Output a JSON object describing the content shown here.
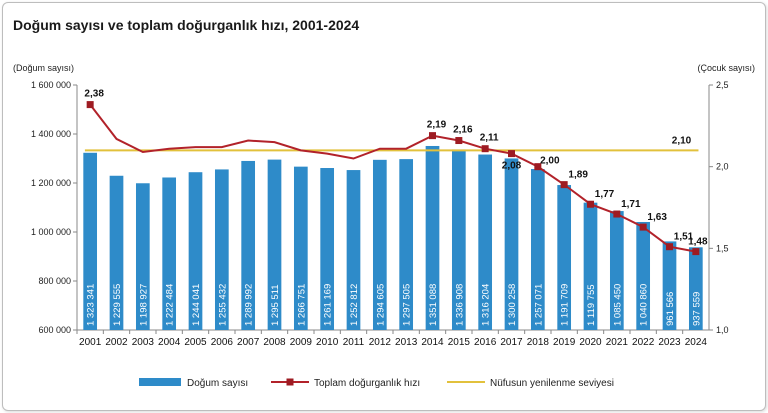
{
  "chart_data": {
    "type": "bar",
    "title": "Doğum sayısı ve toplam doğurganlık hızı, 2001-2024",
    "ylabel_left": "(Doğum sayısı)",
    "ylabel_right": "(Çocuk sayısı)",
    "ylim_left": [
      600000,
      1600000
    ],
    "ylim_right": [
      1.0,
      2.5
    ],
    "left_ticks": [
      "600 000",
      "800 000",
      "1 000 000",
      "1 200 000",
      "1 400 000",
      "1 600 000"
    ],
    "right_ticks": [
      "1,0",
      "1,5",
      "2,0",
      "2,5"
    ],
    "categories": [
      "2001",
      "2002",
      "2003",
      "2004",
      "2005",
      "2006",
      "2007",
      "2008",
      "2009",
      "2010",
      "2011",
      "2012",
      "2013",
      "2014",
      "2015",
      "2016",
      "2017",
      "2018",
      "2019",
      "2020",
      "2021",
      "2022",
      "2023",
      "2024"
    ],
    "series": [
      {
        "name": "Doğum sayısı",
        "type": "bar",
        "axis": "left",
        "values": [
          1323341,
          1229555,
          1198927,
          1222484,
          1244041,
          1255432,
          1289992,
          1295511,
          1266751,
          1261169,
          1252812,
          1294605,
          1297505,
          1351088,
          1336908,
          1316204,
          1300258,
          1257071,
          1191709,
          1119755,
          1085450,
          1040860,
          961566,
          937559
        ],
        "labels": [
          "1 323 341",
          "1 229 555",
          "1 198 927",
          "1 222 484",
          "1 244 041",
          "1 255 432",
          "1 289 992",
          "1 295 511",
          "1 266 751",
          "1 261 169",
          "1 252 812",
          "1 294 605",
          "1 297 505",
          "1 351 088",
          "1 336 908",
          "1 316 204",
          "1 300 258",
          "1 257 071",
          "1 191 709",
          "1 119 755",
          "1 085 450",
          "1 040 860",
          "961 566",
          "937 559"
        ]
      },
      {
        "name": "Toplam doğurganlık hızı",
        "type": "line",
        "axis": "right",
        "values": [
          2.38,
          2.17,
          2.09,
          2.11,
          2.12,
          2.12,
          2.16,
          2.15,
          2.1,
          2.08,
          2.05,
          2.11,
          2.11,
          2.19,
          2.16,
          2.11,
          2.08,
          2.0,
          1.89,
          1.77,
          1.71,
          1.63,
          1.51,
          1.48
        ],
        "annotations": [
          {
            "index": 0,
            "text": "2,38"
          },
          {
            "index": 13,
            "text": "2,19"
          },
          {
            "index": 14,
            "text": "2,16"
          },
          {
            "index": 15,
            "text": "2,11"
          },
          {
            "index": 16,
            "text": "2,08"
          },
          {
            "index": 17,
            "text": "2,00"
          },
          {
            "index": 18,
            "text": "1,89"
          },
          {
            "index": 19,
            "text": "1,77"
          },
          {
            "index": 20,
            "text": "1,71"
          },
          {
            "index": 21,
            "text": "1,63"
          },
          {
            "index": 22,
            "text": "1,51"
          },
          {
            "index": 23,
            "text": "1,48"
          }
        ]
      },
      {
        "name": "Nüfusun yenilenme seviyesi",
        "type": "line",
        "axis": "right",
        "values": [
          2.1,
          2.1,
          2.1,
          2.1,
          2.1,
          2.1,
          2.1,
          2.1,
          2.1,
          2.1,
          2.1,
          2.1,
          2.1,
          2.1,
          2.1,
          2.1,
          2.1,
          2.1,
          2.1,
          2.1,
          2.1,
          2.1,
          2.1,
          2.1
        ],
        "label": "2,10"
      }
    ],
    "colors": {
      "bar": "#2e8bc9",
      "tfr_line": "#b2222a",
      "tfr_marker": "#9e1b22",
      "replacement_line": "#e2c13c"
    },
    "legend_position": "bottom",
    "grid": false
  }
}
